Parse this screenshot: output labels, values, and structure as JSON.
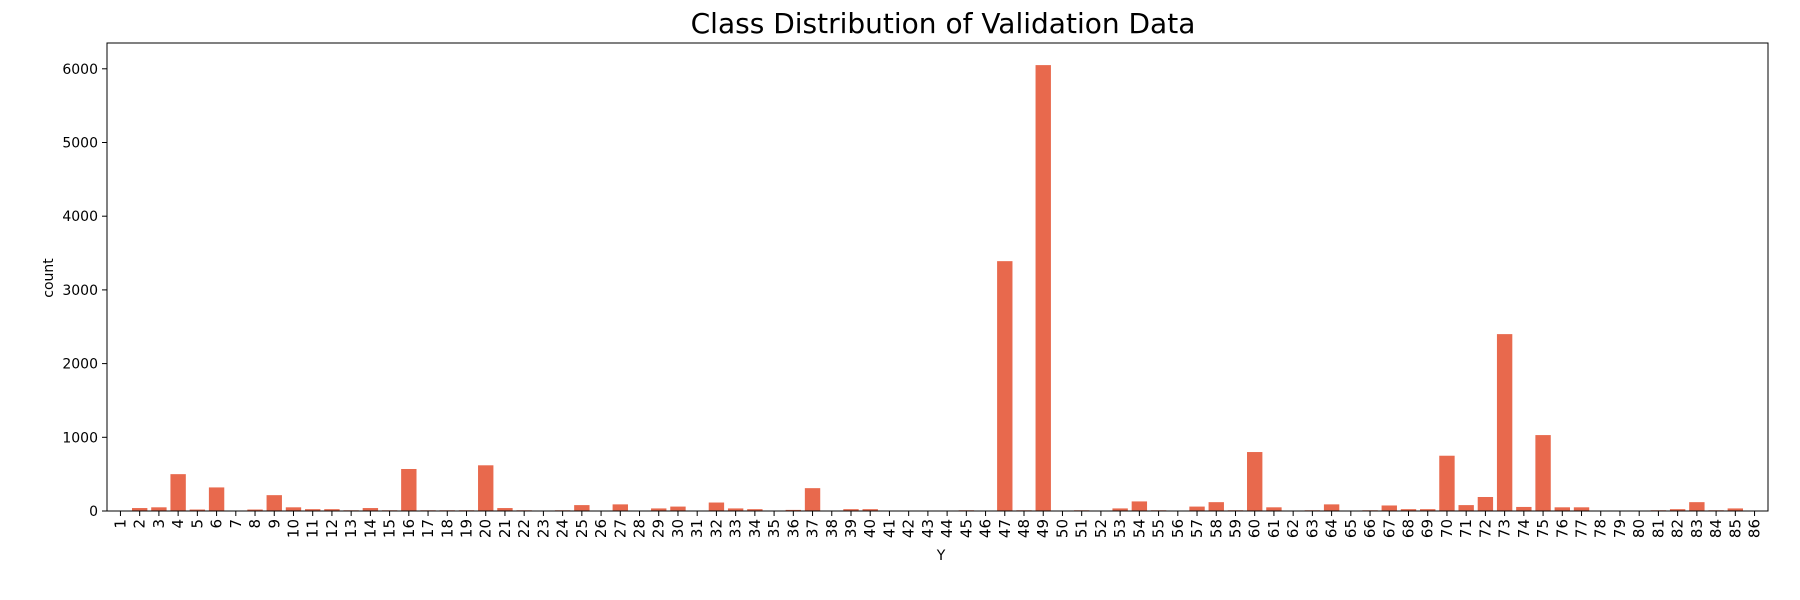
{
  "chart_data": {
    "type": "bar",
    "title": "Class Distribution of Validation Data",
    "xlabel": "Y",
    "ylabel": "count",
    "ylim": [
      0,
      6350
    ],
    "yticks": [
      0,
      1000,
      2000,
      3000,
      4000,
      5000,
      6000
    ],
    "grid": false,
    "bar_color": "#e8694d",
    "categories": [
      "1",
      "2",
      "3",
      "4",
      "5",
      "6",
      "7",
      "8",
      "9",
      "10",
      "11",
      "12",
      "13",
      "14",
      "15",
      "16",
      "17",
      "18",
      "19",
      "20",
      "21",
      "22",
      "23",
      "24",
      "25",
      "26",
      "27",
      "28",
      "29",
      "30",
      "31",
      "32",
      "33",
      "34",
      "35",
      "36",
      "37",
      "38",
      "39",
      "40",
      "41",
      "42",
      "43",
      "44",
      "45",
      "46",
      "47",
      "48",
      "49",
      "50",
      "51",
      "52",
      "53",
      "54",
      "55",
      "56",
      "57",
      "58",
      "59",
      "60",
      "61",
      "62",
      "63",
      "64",
      "65",
      "66",
      "67",
      "68",
      "69",
      "70",
      "71",
      "72",
      "73",
      "74",
      "75",
      "76",
      "77",
      "78",
      "79",
      "80",
      "81",
      "82",
      "83",
      "84",
      "85",
      "86"
    ],
    "values": [
      3,
      40,
      50,
      500,
      20,
      320,
      3,
      20,
      215,
      50,
      25,
      25,
      10,
      40,
      10,
      570,
      10,
      10,
      10,
      620,
      40,
      10,
      3,
      10,
      80,
      3,
      90,
      3,
      35,
      60,
      3,
      115,
      35,
      25,
      3,
      15,
      310,
      3,
      25,
      25,
      3,
      3,
      3,
      3,
      10,
      3,
      3390,
      10,
      6050,
      3,
      10,
      3,
      35,
      130,
      10,
      3,
      60,
      120,
      10,
      800,
      50,
      3,
      10,
      90,
      3,
      10,
      75,
      25,
      25,
      750,
      80,
      190,
      2400,
      55,
      1030,
      50,
      50,
      3,
      3,
      3,
      10,
      25,
      120,
      10,
      35,
      3
    ]
  }
}
